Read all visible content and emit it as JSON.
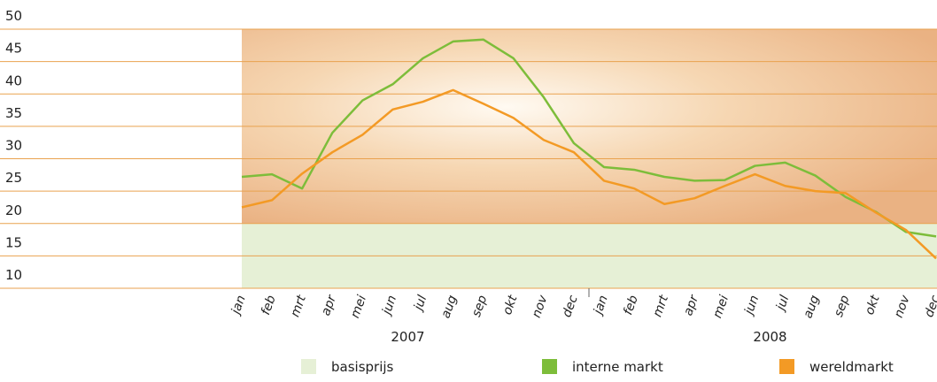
{
  "chart_data": {
    "type": "line",
    "categories": [
      "jan",
      "feb",
      "mrt",
      "apr",
      "mei",
      "jun",
      "jul",
      "aug",
      "sep",
      "okt",
      "nov",
      "dec",
      "jan",
      "feb",
      "mrt",
      "apr",
      "mei",
      "jun",
      "jul",
      "aug",
      "sep",
      "okt",
      "nov",
      "dec"
    ],
    "years": [
      "2007",
      "2008"
    ],
    "ylim": [
      10,
      50
    ],
    "yticks": [
      10,
      15,
      20,
      25,
      30,
      35,
      40,
      45,
      50
    ],
    "grid": true,
    "basisprijs": {
      "name": "basisprijs",
      "color": "#e6f0d6",
      "value": 20
    },
    "series": [
      {
        "name": "interne markt",
        "color": "#7dbd3a",
        "values": [
          27.2,
          27.6,
          25.4,
          34,
          39,
          41.5,
          45.5,
          48.1,
          48.4,
          45.5,
          39.5,
          32.4,
          28.7,
          28.3,
          27.2,
          26.6,
          26.7,
          28.9,
          29.4,
          27.4,
          24.1,
          21.8,
          18.7,
          18
        ]
      },
      {
        "name": "wereldmarkt",
        "color": "#f39a25",
        "values": [
          22.5,
          23.6,
          27.7,
          31,
          33.7,
          37.6,
          38.8,
          40.6,
          38.5,
          36.3,
          32.9,
          31,
          26.6,
          25.4,
          23,
          23.9,
          25.8,
          27.6,
          25.8,
          25,
          24.7,
          21.7,
          19,
          14.6
        ]
      }
    ]
  }
}
